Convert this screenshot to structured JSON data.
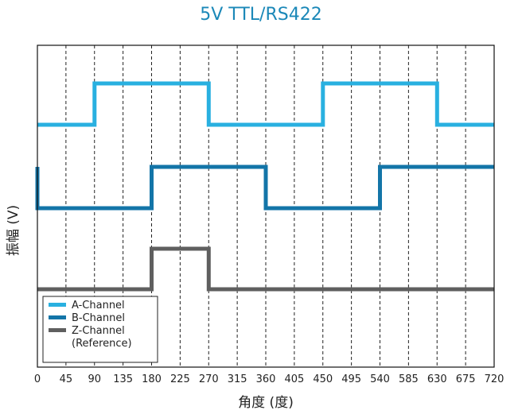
{
  "chart_data": {
    "type": "line",
    "title": "5V TTL/RS422",
    "xlabel": "角度 (度)",
    "ylabel": "振幅 (V)",
    "xlim": [
      0,
      720
    ],
    "xticks": [
      0,
      45,
      90,
      135,
      180,
      225,
      270,
      315,
      360,
      405,
      450,
      495,
      540,
      585,
      630,
      675,
      720
    ],
    "grid": "vertical-dashed",
    "legend_position": "bottom-left",
    "series": [
      {
        "name": "A-Channel",
        "color": "#29b0e0",
        "low": 0,
        "high": 1,
        "x": [
          0,
          90,
          90,
          270,
          270,
          450,
          450,
          630,
          630,
          720
        ],
        "y": [
          0,
          0,
          1,
          1,
          0,
          0,
          1,
          1,
          0,
          0
        ]
      },
      {
        "name": "B-Channel",
        "color": "#1375a8",
        "low": 0,
        "high": 1,
        "x": [
          0,
          0,
          180,
          180,
          360,
          360,
          540,
          540,
          720
        ],
        "y": [
          1,
          0,
          0,
          1,
          1,
          0,
          0,
          1,
          1
        ]
      },
      {
        "name": "Z-Channel",
        "legend_extra": "(Reference)",
        "color": "#5f5f5f",
        "low": 0,
        "high": 1,
        "x": [
          0,
          180,
          180,
          270,
          270,
          720
        ],
        "y": [
          0,
          0,
          1,
          1,
          0,
          0
        ]
      }
    ]
  }
}
